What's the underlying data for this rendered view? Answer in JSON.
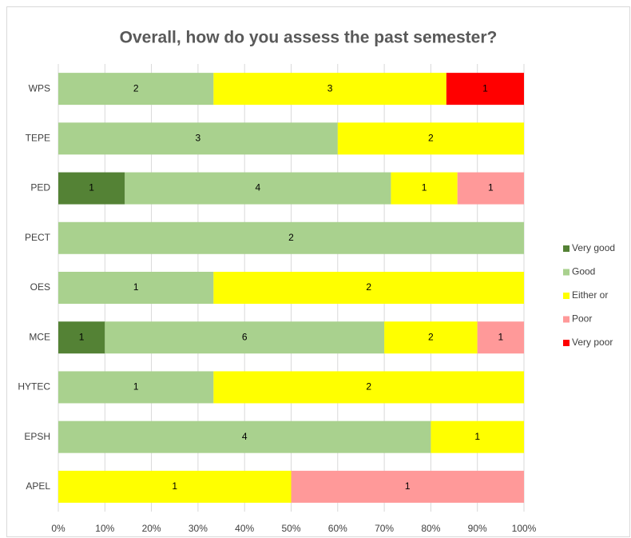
{
  "chart_data": {
    "type": "bar",
    "orientation": "horizontal",
    "stacking": "percent",
    "title": "Overall, how do you assess the past semester?",
    "categories": [
      "WPS",
      "TEPE",
      "PED",
      "PECT",
      "OES",
      "MCE",
      "HYTEC",
      "EPSH",
      "APEL"
    ],
    "series": [
      {
        "name": "Very good",
        "color": "#548235",
        "values": [
          null,
          null,
          1,
          null,
          null,
          1,
          null,
          null,
          null
        ]
      },
      {
        "name": "Good",
        "color": "#a9d18e",
        "values": [
          2,
          3,
          4,
          2,
          1,
          6,
          1,
          4,
          null
        ]
      },
      {
        "name": "Either or",
        "color": "#ffff00",
        "values": [
          3,
          2,
          1,
          null,
          2,
          2,
          2,
          1,
          1
        ]
      },
      {
        "name": "Poor",
        "color": "#ff9999",
        "values": [
          null,
          null,
          1,
          null,
          null,
          1,
          null,
          null,
          1
        ]
      },
      {
        "name": "Very poor",
        "color": "#ff0000",
        "values": [
          1,
          null,
          null,
          null,
          null,
          null,
          null,
          null,
          null
        ]
      }
    ],
    "xlim": [
      0,
      100
    ],
    "xticks": [
      {
        "value": 0,
        "label": "0%"
      },
      {
        "value": 10,
        "label": "10%"
      },
      {
        "value": 20,
        "label": "20%"
      },
      {
        "value": 30,
        "label": "30%"
      },
      {
        "value": 40,
        "label": "40%"
      },
      {
        "value": 50,
        "label": "50%"
      },
      {
        "value": 60,
        "label": "60%"
      },
      {
        "value": 70,
        "label": "70%"
      },
      {
        "value": 80,
        "label": "80%"
      },
      {
        "value": 90,
        "label": "90%"
      },
      {
        "value": 100,
        "label": "100%"
      }
    ],
    "grid": true,
    "legend": "right"
  }
}
